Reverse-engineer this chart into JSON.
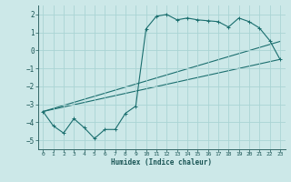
{
  "xlabel": "Humidex (Indice chaleur)",
  "ylabel": "",
  "background_color": "#cce8e8",
  "grid_color": "#aad4d4",
  "line_color": "#1a6e6e",
  "xlim": [
    -0.5,
    23.5
  ],
  "ylim": [
    -5.5,
    2.5
  ],
  "yticks": [
    -5,
    -4,
    -3,
    -2,
    -1,
    0,
    1,
    2
  ],
  "xticks": [
    0,
    1,
    2,
    3,
    4,
    5,
    6,
    7,
    8,
    9,
    10,
    11,
    12,
    13,
    14,
    15,
    16,
    17,
    18,
    19,
    20,
    21,
    22,
    23
  ],
  "series1_x": [
    0,
    1,
    2,
    3,
    4,
    5,
    6,
    7,
    8,
    9,
    10,
    11,
    12,
    13,
    14,
    15,
    16,
    17,
    18,
    19,
    20,
    21,
    22,
    23
  ],
  "series1_y": [
    -3.4,
    -4.2,
    -4.6,
    -3.8,
    -4.3,
    -4.9,
    -4.4,
    -4.4,
    -3.5,
    -3.1,
    1.2,
    1.9,
    2.0,
    1.7,
    1.8,
    1.7,
    1.65,
    1.6,
    1.3,
    1.8,
    1.6,
    1.25,
    0.55,
    -0.5
  ],
  "series2_x": [
    0,
    23
  ],
  "series2_y": [
    -3.4,
    0.5
  ],
  "series3_x": [
    0,
    23
  ],
  "series3_y": [
    -3.4,
    -0.5
  ]
}
